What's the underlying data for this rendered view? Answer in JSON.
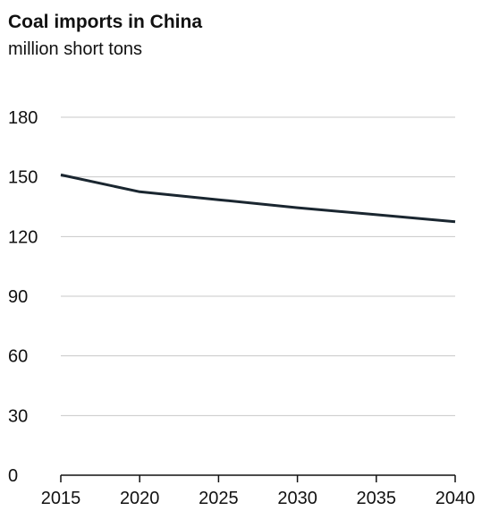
{
  "chart_data": {
    "type": "line",
    "title": "Coal imports in China",
    "subtitle": "million short tons",
    "xlabel": "",
    "ylabel": "",
    "x": [
      2015,
      2020,
      2025,
      2030,
      2035,
      2040
    ],
    "series": [
      {
        "values": [
          151,
          142.5,
          138.5,
          134.5,
          131,
          127.5
        ],
        "color": "#1a2630"
      }
    ],
    "xlim": [
      2015,
      2040
    ],
    "ylim": [
      0,
      180
    ],
    "xticks": [
      2015,
      2020,
      2025,
      2030,
      2035,
      2040
    ],
    "yticks": [
      0,
      30,
      60,
      90,
      120,
      150,
      180
    ],
    "grid": true,
    "legend": "none"
  },
  "colors": {
    "line": "#1a2630",
    "grid": "#c8c8c8",
    "axis": "#111111"
  }
}
